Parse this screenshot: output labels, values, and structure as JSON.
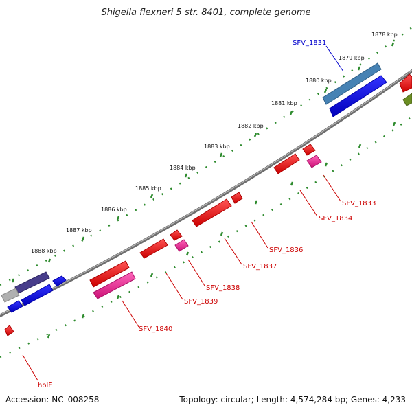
{
  "title": "Shigella flexneri 5 str. 8401, complete genome",
  "footer": {
    "accession": "Accession: NC_008258",
    "topology": "Topology: circular; Length: 4,574,284 bp; Genes: 4,233"
  },
  "ticks": [
    "1878 kbp",
    "1879 kbp",
    "1880 kbp",
    "1881 kbp",
    "1882 kbp",
    "1883 kbp",
    "1884 kbp",
    "1885 kbp",
    "1886 kbp",
    "1887 kbp",
    "1888 kbp"
  ],
  "gene_labels": [
    "SFV_1831",
    "SFV_1833",
    "SFV_1834",
    "SFV_1836",
    "SFV_1837",
    "SFV_1838",
    "SFV_1839",
    "SFV_1840",
    "holE"
  ],
  "colors": {
    "backbone": "#808080",
    "tick": "#2e8b2e",
    "cds": "#ff0000",
    "pseudogene": "#ff3399",
    "blue": "#0000ff",
    "steel": "#4682b4",
    "purple": "#483d8b",
    "grey": "#b0b0b0",
    "olive": "#6b8e23",
    "label_red": "#cc0000",
    "label_blue": "#0000cc"
  }
}
